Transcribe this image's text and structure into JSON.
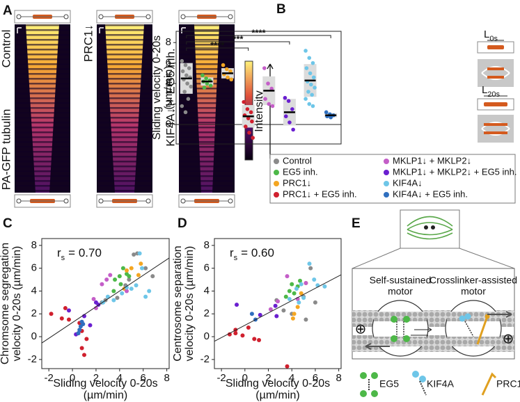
{
  "panel_labels": [
    "A",
    "B",
    "C",
    "D",
    "E"
  ],
  "panel_a": {
    "conditions": [
      "Control",
      "PRC1↓",
      "KIF4A↓ + EG5 inh."
    ],
    "side_label": "PA-GFP tubulin",
    "colorbar_label": "Intensity"
  },
  "panel_b_schematic": {
    "labels": [
      {
        "symbol": "L",
        "subscript": "0s"
      },
      {
        "symbol": "L",
        "subscript": "20s"
      }
    ]
  },
  "panel_e": {
    "titles": [
      [
        "Self-sustained",
        "motor"
      ],
      [
        "Crosslinker-assisted",
        "motor"
      ]
    ],
    "legend": [
      "EG5",
      "KIF4A",
      "PRC1"
    ]
  },
  "chart_data": [
    {
      "type": "strip",
      "ylabel": [
        "Sliding velocity 0-20s",
        "(µm/min)"
      ],
      "ylim": [
        -1.9,
        9.1
      ],
      "yticks": [
        0,
        2,
        4,
        6,
        8
      ],
      "zero_line": true,
      "legend_columns": 2,
      "series": [
        {
          "name": "Control",
          "color": "#8a8a8a",
          "values": [
            6.2,
            5.8,
            5.5,
            5.2,
            4.8,
            4.6,
            4.4,
            4.0,
            3.7,
            3.2,
            2.5,
            1.8,
            1.2
          ],
          "mean": 4.5,
          "sd": 1.5
        },
        {
          "name": "EG5 inh.",
          "color": "#4db848",
          "values": [
            4.8,
            4.5,
            4.3,
            4.2,
            4.0,
            3.8,
            3.6
          ],
          "mean": 4.2,
          "sd": 0.4
        },
        {
          "name": "PRC1↓",
          "color": "#f4a622",
          "values": [
            5.8,
            5.4,
            5.2,
            4.9,
            4.6,
            4.4
          ],
          "mean": 5.0,
          "sd": 0.5
        },
        {
          "name": "PRC1↓ + EG5 inh.",
          "color": "#d0202e",
          "values": [
            2.2,
            1.5,
            1.2,
            0.9,
            0.6,
            0.3,
            -0.2,
            -0.8,
            -1.3
          ],
          "mean": 0.8,
          "sd": 1.1
        },
        {
          "name": "MKLP1↓ + MKLP2↓",
          "color": "#c45ec8",
          "values": [
            5.5,
            4.0,
            3.5,
            2.5,
            2.0,
            1.8
          ],
          "mean": 3.3,
          "sd": 1.4
        },
        {
          "name": "MKLP1↓ + MKLP2↓ + EG5 inh.",
          "color": "#6a1fd0",
          "values": [
            2.6,
            2.3,
            1.5,
            0.8,
            0.2,
            -0.5
          ],
          "mean": 1.2,
          "sd": 1.3
        },
        {
          "name": "KIF4A↓",
          "color": "#6ec6e8",
          "values": [
            7.2,
            6.5,
            6.0,
            5.5,
            5.0,
            4.6,
            4.2,
            3.9,
            3.6,
            3.2,
            2.9,
            2.5,
            2.0,
            1.8
          ],
          "mean": 4.3,
          "sd": 1.6
        },
        {
          "name": "KIF4A↓ + EG5 inh.",
          "color": "#2f6fbf",
          "values": [
            1.2,
            1.0,
            0.9,
            0.8,
            0.7
          ],
          "mean": 0.9,
          "sd": 0.2
        }
      ],
      "comparisons": [
        {
          "text": "****",
          "from": 0,
          "to": 7
        },
        {
          "text": "***",
          "from": 0,
          "to": 5
        },
        {
          "text": "****",
          "from": 0,
          "to": 3
        }
      ]
    },
    {
      "type": "scatter",
      "ylabel": [
        "Chromsome segregation",
        "velocity 0-20s (µm/min)"
      ],
      "xlabel": [
        "Sliding velocity 0-20s",
        "(µm/min)"
      ],
      "xlim": [
        -2.6,
        8.2
      ],
      "ylim": [
        -2.8,
        8.6
      ],
      "xticks": [
        -2,
        0,
        2,
        4,
        6,
        8
      ],
      "yticks": [
        -2,
        0,
        2,
        4,
        6,
        8
      ],
      "stat": {
        "symbol": "r",
        "subscript": "s",
        "text": "= 0.70"
      },
      "fit": {
        "slope": 0.69,
        "intercept": 1.24
      },
      "series": [
        {
          "color": "#8a8a8a",
          "x": [
            5.2,
            5.5,
            6.2,
            4.8,
            4.5,
            2.8,
            2.5,
            6.8,
            3.8
          ],
          "y": [
            7.2,
            7.3,
            6.0,
            5.0,
            4.5,
            3.2,
            3.0,
            5.3,
            3.4
          ]
        },
        {
          "color": "#4db848",
          "x": [
            4.3,
            4.6,
            4.0,
            3.6,
            4.8,
            4.1,
            3.5
          ],
          "y": [
            6.0,
            5.5,
            5.3,
            5.0,
            5.3,
            4.6,
            4.0
          ]
        },
        {
          "color": "#f4a622",
          "x": [
            5.8,
            5.0,
            4.6,
            4.4,
            5.6
          ],
          "y": [
            6.4,
            6.0,
            5.8,
            4.2,
            5.4
          ]
        },
        {
          "color": "#d0202e",
          "x": [
            -1.8,
            -0.6,
            -0.3,
            0.6,
            0.8,
            0.5,
            1.0,
            0.8,
            1.2,
            -0.9
          ],
          "y": [
            2.0,
            2.5,
            1.5,
            1.2,
            0.5,
            0.3,
            -1.6,
            -1.0,
            -0.2,
            1.6
          ]
        },
        {
          "color": "#c45ec8",
          "x": [
            2.9,
            3.2,
            1.8,
            2.0,
            4.6,
            2.5
          ],
          "y": [
            5.0,
            5.4,
            3.3,
            2.5,
            4.0,
            4.6
          ]
        },
        {
          "color": "#6a1fd0",
          "x": [
            -0.3,
            1.5,
            2.2,
            0.3,
            1.0,
            2.0
          ],
          "y": [
            2.3,
            1.0,
            2.8,
            0.2,
            1.8,
            3.0
          ]
        },
        {
          "color": "#6ec6e8",
          "x": [
            5.7,
            5.4,
            6.2,
            5.0,
            3.5,
            3.0,
            6.5,
            4.2,
            2.6,
            5.9,
            4.6
          ],
          "y": [
            7.3,
            4.5,
            3.5,
            4.2,
            3.2,
            3.5,
            4.0,
            3.8,
            3.0,
            6.0,
            4.3
          ]
        },
        {
          "color": "#2f6fbf",
          "x": [
            0.8,
            0.7,
            0.6,
            0.9,
            0.5
          ],
          "y": [
            1.3,
            0.9,
            0.6,
            1.1,
            0.3
          ]
        }
      ]
    },
    {
      "type": "scatter",
      "ylabel": [
        "Centrosome separation",
        "velocity 0-20s (µm/min)"
      ],
      "xlabel": [
        "Sliding velocity 0-20s",
        "(µm/min)"
      ],
      "xlim": [
        -2.6,
        8.2
      ],
      "ylim": [
        -2.8,
        8.6
      ],
      "xticks": [
        -2,
        0,
        2,
        4,
        6,
        8
      ],
      "yticks": [
        -2,
        0,
        2,
        4,
        6,
        8
      ],
      "stat": {
        "symbol": "r",
        "subscript": "s",
        "text": "= 0.60"
      },
      "fit": {
        "slope": 0.54,
        "intercept": 1.0
      },
      "series": [
        {
          "color": "#8a8a8a",
          "x": [
            5.6,
            5.0,
            3.3,
            6.0,
            4.0,
            5.2,
            2.7
          ],
          "y": [
            6.0,
            3.5,
            2.3,
            3.0,
            2.0,
            1.5,
            3.2
          ]
        },
        {
          "color": "#4db848",
          "x": [
            4.2,
            4.5,
            3.8,
            4.0,
            3.5,
            4.7
          ],
          "y": [
            3.8,
            4.4,
            4.0,
            4.6,
            3.5,
            4.9
          ]
        },
        {
          "color": "#f4a622",
          "x": [
            5.2,
            4.5,
            4.8,
            4.2,
            4.1
          ],
          "y": [
            4.7,
            2.6,
            3.8,
            2.0,
            1.6
          ]
        },
        {
          "color": "#d0202e",
          "x": [
            -1.3,
            -0.8,
            -0.2,
            0.3,
            -0.8,
            0.8,
            1.2,
            3.6
          ],
          "y": [
            0.2,
            0.3,
            0.1,
            0.8,
            0.6,
            -0.2,
            -0.3,
            -2.6
          ]
        },
        {
          "color": "#c45ec8",
          "x": [
            3.6,
            2.8,
            4.5,
            2.2,
            5.2
          ],
          "y": [
            5.3,
            3.1,
            3.3,
            2.4,
            4.7
          ]
        },
        {
          "color": "#6a1fd0",
          "x": [
            -0.7,
            2.6,
            1.3,
            2.7
          ],
          "y": [
            2.8,
            2.7,
            1.9,
            1.8
          ]
        },
        {
          "color": "#6ec6e8",
          "x": [
            5.5,
            6.2,
            5.0,
            4.8,
            3.8,
            5.9,
            4.6,
            6.8,
            4.4
          ],
          "y": [
            6.4,
            4.5,
            3.4,
            4.6,
            3.3,
            5.0,
            3.0,
            4.4,
            4.2
          ]
        },
        {
          "color": "#2f6fbf",
          "x": [
            0.6,
            0.9
          ],
          "y": [
            2.0,
            1.5
          ]
        }
      ]
    }
  ]
}
